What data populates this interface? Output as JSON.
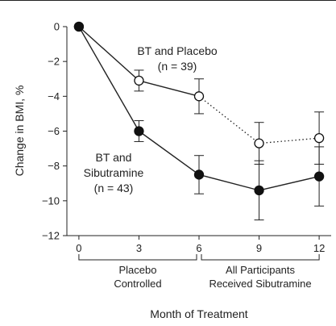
{
  "chart_data": {
    "type": "line",
    "xlabel": "Month of Treatment",
    "ylabel": "Change in BMI, %",
    "x": [
      0,
      3,
      6,
      9,
      12
    ],
    "xlim": [
      -0.6,
      12.6
    ],
    "ylim": [
      -12,
      0
    ],
    "yticks": [
      0,
      -2,
      -4,
      -6,
      -8,
      -10,
      -12
    ],
    "ytick_labels": [
      "0",
      "−2",
      "−4",
      "−6",
      "−8",
      "−10",
      "−12"
    ],
    "grid": false,
    "series": [
      {
        "name": "BT and Placebo",
        "label_lines": [
          "BT and Placebo",
          "(n = 39)"
        ],
        "marker": "open-circle",
        "values": [
          0,
          -3.1,
          -4.0,
          -6.7,
          -6.4
        ],
        "err": [
          0,
          0.6,
          1.0,
          1.2,
          1.5
        ],
        "line_styles": [
          "solid",
          "solid",
          "dotted",
          "dotted"
        ]
      },
      {
        "name": "BT and Sibutramine",
        "label_lines": [
          "BT and",
          "Sibutramine",
          "(n = 43)"
        ],
        "marker": "filled-circle",
        "values": [
          0,
          -6.0,
          -8.5,
          -9.4,
          -8.6
        ],
        "err": [
          0,
          0.6,
          1.1,
          1.7,
          1.7
        ],
        "line_styles": [
          "solid",
          "solid",
          "solid",
          "solid"
        ]
      }
    ],
    "phases": [
      {
        "label_lines": [
          "Placebo",
          "Controlled"
        ],
        "from": 0,
        "to": 6
      },
      {
        "label_lines": [
          "All Participants",
          "Received Sibutramine"
        ],
        "from": 6,
        "to": 12
      }
    ]
  }
}
